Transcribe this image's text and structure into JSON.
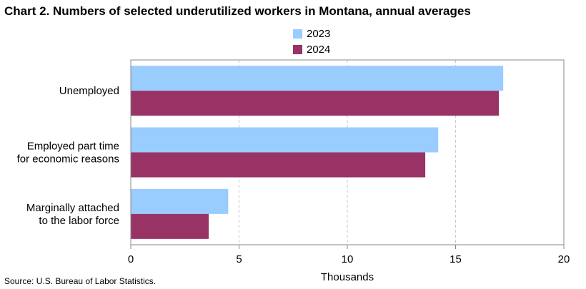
{
  "chart_data": {
    "type": "bar",
    "orientation": "horizontal",
    "title": "Chart 2. Numbers of selected underutilized workers in Montana, annual averages",
    "categories": [
      [
        "Unemployed"
      ],
      [
        "Employed part time",
        "for economic reasons"
      ],
      [
        "Marginally attached",
        "to the labor force"
      ]
    ],
    "series": [
      {
        "name": "2023",
        "color": "#99ccff",
        "values": [
          17.2,
          14.2,
          4.5
        ]
      },
      {
        "name": "2024",
        "color": "#993366",
        "values": [
          17.0,
          13.6,
          3.6
        ]
      }
    ],
    "xlabel": "Thousands",
    "xlim": [
      0,
      20
    ],
    "xticks": [
      0,
      5,
      10,
      15,
      20
    ],
    "grid": true,
    "legend_position": "top"
  },
  "source": "Source: U.S. Bureau of Labor Statistics."
}
